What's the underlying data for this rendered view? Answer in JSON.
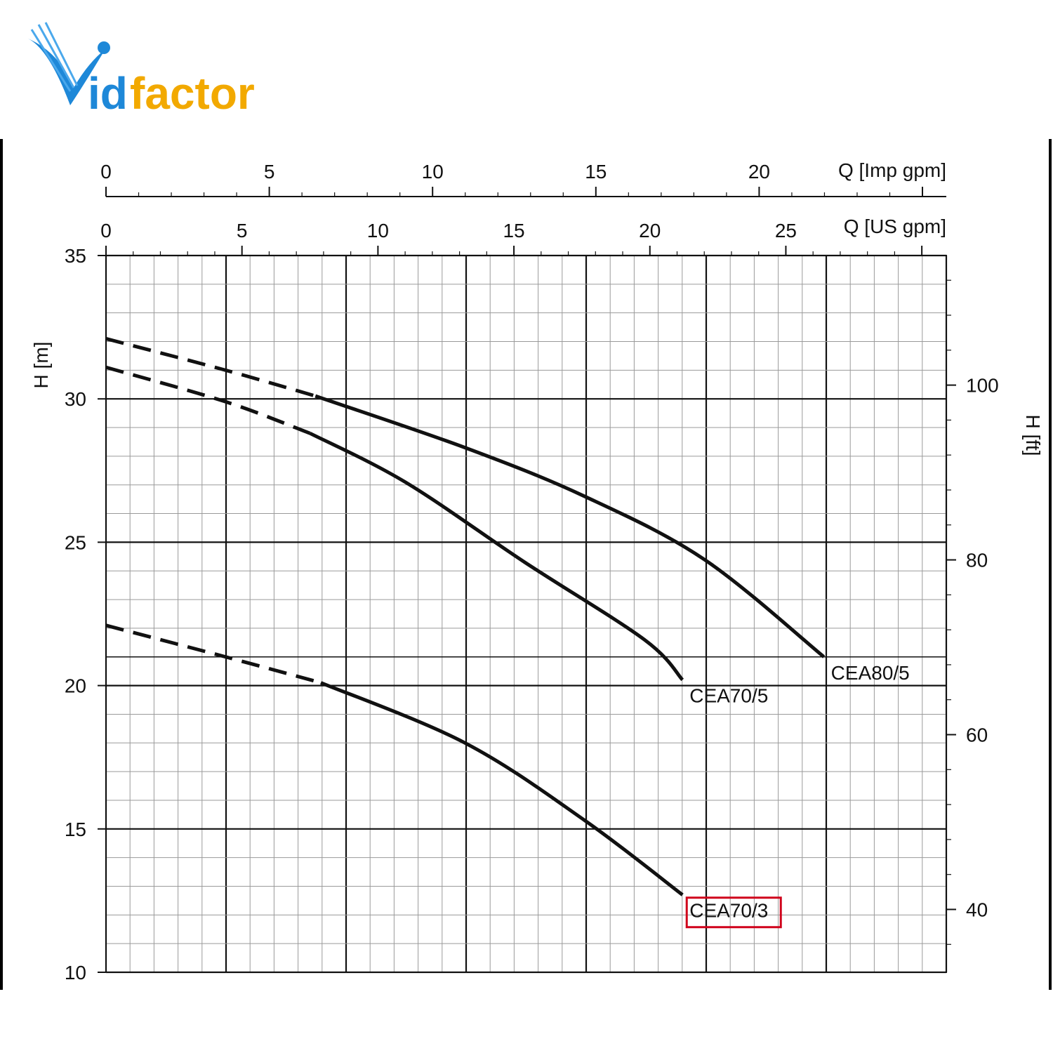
{
  "logo": {
    "text_blue": "id",
    "text_orange": "factor",
    "initial": "V"
  },
  "colors": {
    "brand_blue": "#1e88d8",
    "brand_orange": "#f2a900",
    "highlight_red": "#d0021b",
    "curve": "#111111",
    "grid": "#9a9a9a"
  },
  "chart_data": {
    "type": "line",
    "y_left": {
      "label": "H [m]",
      "ylim": [
        10,
        35
      ],
      "ticks": [
        10,
        15,
        20,
        25,
        30,
        35
      ]
    },
    "y_right": {
      "label": "H [ft]",
      "ticks": [
        40,
        60,
        80,
        100
      ]
    },
    "x_top_imp": {
      "label": "Q [Imp gpm]",
      "ticks": [
        0,
        5,
        10,
        15,
        20
      ]
    },
    "x_top_us": {
      "label": "Q [US gpm]",
      "ticks": [
        0,
        5,
        10,
        15,
        20,
        25
      ]
    },
    "xlim_us_gpm": [
      0,
      30.9
    ],
    "series": [
      {
        "name": "CEA80/5",
        "dashed_until": 7.7,
        "x": [
          0,
          4.4,
          7.7,
          13.2,
          17.6,
          22.0,
          26.4
        ],
        "y": [
          32.1,
          31.0,
          30.1,
          28.3,
          26.6,
          24.4,
          21.0
        ]
      },
      {
        "name": "CEA70/5",
        "dashed_until": 7.5,
        "x": [
          0,
          4.4,
          7.5,
          11.0,
          15.4,
          19.8,
          21.2
        ],
        "y": [
          31.1,
          29.9,
          28.8,
          27.1,
          24.3,
          21.6,
          20.2
        ]
      },
      {
        "name": "CEA70/3",
        "dashed_until": 7.9,
        "highlighted": true,
        "x": [
          0,
          4.4,
          7.9,
          13.2,
          17.6,
          21.2
        ],
        "y": [
          22.1,
          21.0,
          20.1,
          18.0,
          15.3,
          12.7
        ]
      }
    ]
  }
}
